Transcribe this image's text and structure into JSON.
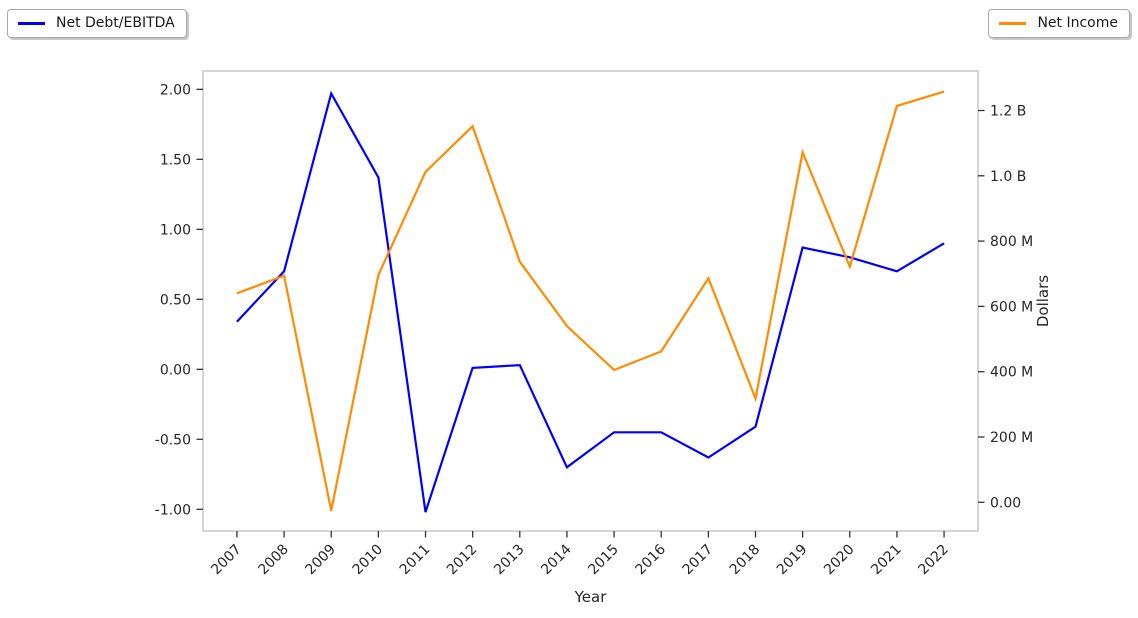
{
  "legends": [
    {
      "label": "Net Debt/EBITDA",
      "color": "#0000ff"
    },
    {
      "label": "Net Income",
      "color": "#ff8c00"
    }
  ],
  "chart_data": {
    "type": "line",
    "title": "",
    "xlabel": "Year",
    "left_ylabel": "",
    "right_ylabel": "Dollars",
    "grid": false,
    "x": [
      2007,
      2008,
      2009,
      2010,
      2011,
      2012,
      2013,
      2014,
      2015,
      2016,
      2017,
      2018,
      2019,
      2020,
      2021,
      2022
    ],
    "series": [
      {
        "id": "net-debt-ebitda",
        "name": "Net Debt/EBITDA",
        "axis": "left",
        "color": "#0000ff",
        "values": [
          0.34,
          0.7,
          1.97,
          1.37,
          -1.02,
          0.01,
          0.03,
          -0.7,
          -0.45,
          -0.45,
          -0.63,
          -0.41,
          0.87,
          0.8,
          0.7,
          0.9
        ]
      },
      {
        "id": "net-income",
        "name": "Net Income",
        "axis": "right",
        "color": "#ff8c00",
        "values": [
          640000000,
          694000000,
          -26000000,
          696000000,
          1012000000,
          1152000000,
          737000000,
          540000000,
          405000000,
          462000000,
          686000000,
          318000000,
          1072000000,
          722000000,
          1214000000,
          1258000000
        ]
      }
    ],
    "left_ticks": [
      {
        "value": 2.0,
        "label": "2.00"
      },
      {
        "value": 1.5,
        "label": "1.50"
      },
      {
        "value": 1.0,
        "label": "1.00"
      },
      {
        "value": 0.5,
        "label": "0.50"
      },
      {
        "value": 0.0,
        "label": "0.00"
      },
      {
        "value": -0.5,
        "label": "-0.50"
      },
      {
        "value": -1.0,
        "label": "-1.00"
      }
    ],
    "right_ticks": [
      {
        "value": 1200000000,
        "label": "1.2 B"
      },
      {
        "value": 1000000000,
        "label": "1.0 B"
      },
      {
        "value": 800000000,
        "label": "800 M"
      },
      {
        "value": 600000000,
        "label": "600 M"
      },
      {
        "value": 400000000,
        "label": "400 M"
      },
      {
        "value": 200000000,
        "label": "200 M"
      },
      {
        "value": 0,
        "label": "0.00"
      }
    ],
    "xlim": [
      2006.28,
      2022.72
    ],
    "left_ylim": [
      -1.155,
      2.131
    ],
    "right_ylim": [
      -88000000,
      1321000000
    ],
    "legend_position": [
      "figure upper left",
      "figure upper right"
    ],
    "colors": {
      "spine": "#cbcbcb",
      "tick": "#333333",
      "tick_label": "#262626",
      "background": "#ffffff"
    }
  }
}
